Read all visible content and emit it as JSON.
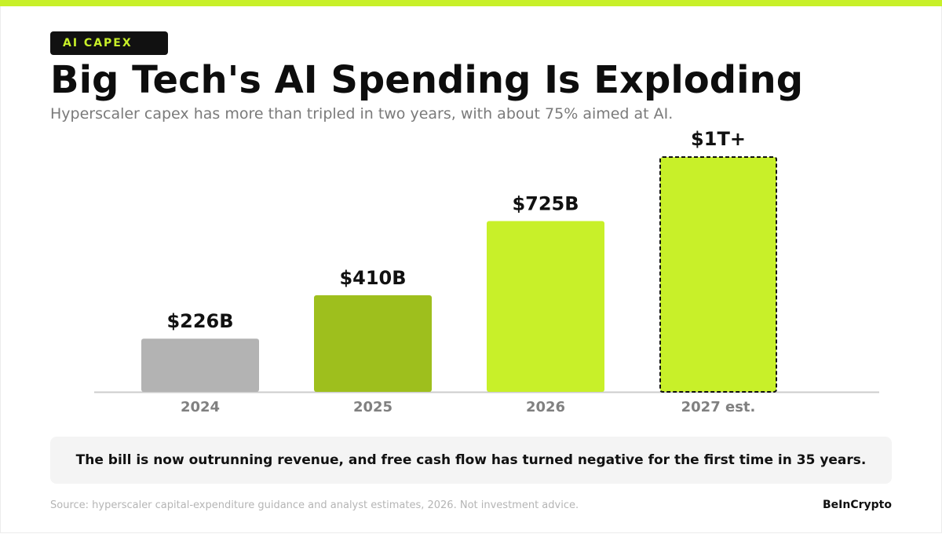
{
  "header": {
    "badge": "AI CAPEX",
    "title": "Big Tech's AI Spending Is Exploding",
    "subtitle": "Hyperscaler capex has more than tripled in two years, with about 75% aimed at AI."
  },
  "colors": {
    "accent": "#c8f029",
    "dark_green": "#9ebf1d",
    "gray_bar": "#b3b3b3",
    "axis": "#cccccc",
    "tick_label": "#808080",
    "value_label": "#111111",
    "badge_bg": "#111111"
  },
  "chart_data": {
    "type": "bar",
    "categories": [
      "2024",
      "2025",
      "2026",
      "2027 est."
    ],
    "values": [
      226,
      410,
      725,
      1000
    ],
    "value_labels": [
      "$226B",
      "$410B",
      "$725B",
      "$1T+"
    ],
    "bar_colors": [
      "#b3b3b3",
      "#9ebf1d",
      "#c8f029",
      "#c8f029"
    ],
    "estimated": [
      false,
      false,
      false,
      true
    ],
    "ylim": [
      0,
      1000
    ],
    "title": "",
    "xlabel": "",
    "ylabel": "",
    "grid": false
  },
  "callout": {
    "text": "The bill is now outrunning revenue, and free cash flow has turned negative for the first time in 35 years."
  },
  "footer": {
    "source": "Source: hyperscaler capital-expenditure guidance and analyst estimates, 2026. Not investment advice.",
    "brand": "BeInCrypto"
  }
}
